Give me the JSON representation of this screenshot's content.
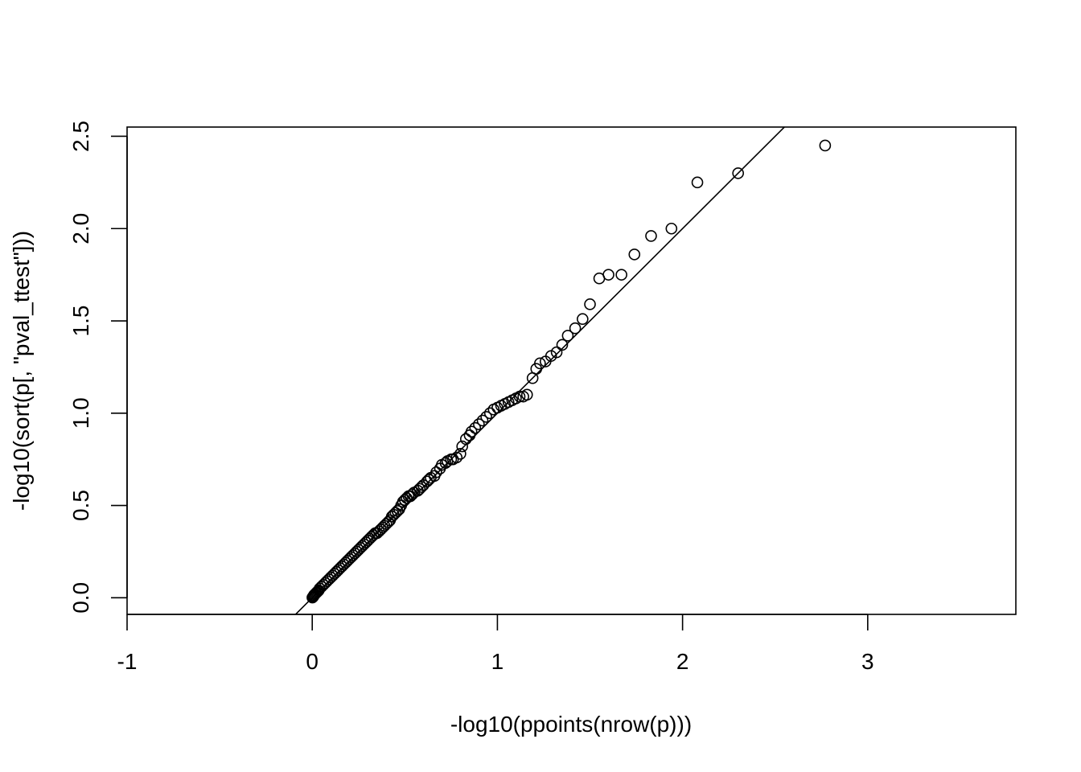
{
  "chart_data": {
    "type": "scatter",
    "title": "",
    "xlabel": "-log10(ppoints(nrow(p)))",
    "ylabel": "-log10(sort(p[, \"pval_ttest\"]))",
    "xlim": [
      -1.0,
      3.8
    ],
    "ylim": [
      -0.09,
      2.55
    ],
    "xticks": [
      -1,
      0,
      1,
      2,
      3
    ],
    "xtick_labels": [
      "-1",
      "0",
      "1",
      "2",
      "3"
    ],
    "yticks": [
      0.0,
      0.5,
      1.0,
      1.5,
      2.0,
      2.5
    ],
    "ytick_labels": [
      "0.0",
      "0.5",
      "1.0",
      "1.5",
      "2.0",
      "2.5"
    ],
    "grid": false,
    "legend": "none",
    "reference_line": {
      "slope": 1,
      "intercept": 0
    },
    "marker": "open-circle",
    "points": [
      [
        2.77,
        2.45
      ],
      [
        2.3,
        2.3
      ],
      [
        2.08,
        2.25
      ],
      [
        1.94,
        2.0
      ],
      [
        1.83,
        1.96
      ],
      [
        1.74,
        1.86
      ],
      [
        1.67,
        1.75
      ],
      [
        1.6,
        1.75
      ],
      [
        1.55,
        1.73
      ],
      [
        1.5,
        1.59
      ],
      [
        1.46,
        1.51
      ],
      [
        1.42,
        1.46
      ],
      [
        1.38,
        1.42
      ],
      [
        1.35,
        1.37
      ],
      [
        1.32,
        1.33
      ],
      [
        1.29,
        1.31
      ],
      [
        1.26,
        1.28
      ],
      [
        1.23,
        1.27
      ],
      [
        1.21,
        1.24
      ],
      [
        1.19,
        1.19
      ],
      [
        1.16,
        1.1
      ],
      [
        1.14,
        1.09
      ],
      [
        1.12,
        1.09
      ],
      [
        1.1,
        1.08
      ],
      [
        1.08,
        1.07
      ],
      [
        1.06,
        1.06
      ],
      [
        1.04,
        1.05
      ],
      [
        1.02,
        1.04
      ],
      [
        1.0,
        1.03
      ],
      [
        0.98,
        1.02
      ],
      [
        0.96,
        1.0
      ],
      [
        0.94,
        0.98
      ],
      [
        0.92,
        0.96
      ],
      [
        0.9,
        0.94
      ],
      [
        0.88,
        0.92
      ],
      [
        0.86,
        0.9
      ],
      [
        0.85,
        0.88
      ],
      [
        0.83,
        0.86
      ],
      [
        0.81,
        0.82
      ],
      [
        0.8,
        0.78
      ],
      [
        0.78,
        0.76
      ],
      [
        0.76,
        0.75
      ],
      [
        0.75,
        0.75
      ],
      [
        0.73,
        0.74
      ],
      [
        0.72,
        0.73
      ],
      [
        0.7,
        0.72
      ],
      [
        0.69,
        0.7
      ],
      [
        0.67,
        0.68
      ],
      [
        0.66,
        0.66
      ],
      [
        0.64,
        0.65
      ],
      [
        0.63,
        0.64
      ],
      [
        0.62,
        0.63
      ],
      [
        0.6,
        0.61
      ],
      [
        0.59,
        0.6
      ],
      [
        0.58,
        0.59
      ],
      [
        0.57,
        0.58
      ],
      [
        0.55,
        0.57
      ],
      [
        0.54,
        0.56
      ],
      [
        0.53,
        0.55
      ],
      [
        0.52,
        0.55
      ],
      [
        0.51,
        0.54
      ],
      [
        0.5,
        0.53
      ],
      [
        0.49,
        0.52
      ],
      [
        0.48,
        0.5
      ],
      [
        0.47,
        0.48
      ],
      [
        0.46,
        0.47
      ],
      [
        0.45,
        0.46
      ],
      [
        0.44,
        0.45
      ],
      [
        0.43,
        0.44
      ],
      [
        0.42,
        0.42
      ],
      [
        0.41,
        0.41
      ],
      [
        0.4,
        0.4
      ],
      [
        0.39,
        0.39
      ],
      [
        0.38,
        0.38
      ],
      [
        0.37,
        0.37
      ],
      [
        0.36,
        0.36
      ],
      [
        0.35,
        0.35
      ],
      [
        0.34,
        0.35
      ],
      [
        0.33,
        0.34
      ],
      [
        0.32,
        0.33
      ],
      [
        0.31,
        0.32
      ],
      [
        0.3,
        0.31
      ],
      [
        0.29,
        0.3
      ],
      [
        0.28,
        0.29
      ],
      [
        0.27,
        0.28
      ],
      [
        0.26,
        0.27
      ],
      [
        0.25,
        0.26
      ],
      [
        0.24,
        0.25
      ],
      [
        0.23,
        0.24
      ],
      [
        0.22,
        0.23
      ],
      [
        0.21,
        0.22
      ],
      [
        0.2,
        0.21
      ],
      [
        0.19,
        0.2
      ],
      [
        0.18,
        0.19
      ],
      [
        0.17,
        0.18
      ],
      [
        0.16,
        0.17
      ],
      [
        0.15,
        0.16
      ],
      [
        0.14,
        0.15
      ],
      [
        0.13,
        0.14
      ],
      [
        0.12,
        0.13
      ],
      [
        0.11,
        0.12
      ],
      [
        0.1,
        0.11
      ],
      [
        0.09,
        0.1
      ],
      [
        0.08,
        0.09
      ],
      [
        0.07,
        0.08
      ],
      [
        0.06,
        0.07
      ],
      [
        0.05,
        0.06
      ],
      [
        0.04,
        0.05
      ],
      [
        0.035,
        0.04
      ],
      [
        0.03,
        0.035
      ],
      [
        0.025,
        0.03
      ],
      [
        0.02,
        0.025
      ],
      [
        0.015,
        0.02
      ],
      [
        0.01,
        0.015
      ],
      [
        0.008,
        0.01
      ],
      [
        0.005,
        0.006
      ],
      [
        0.003,
        0.003
      ],
      [
        0.001,
        0.001
      ]
    ]
  }
}
